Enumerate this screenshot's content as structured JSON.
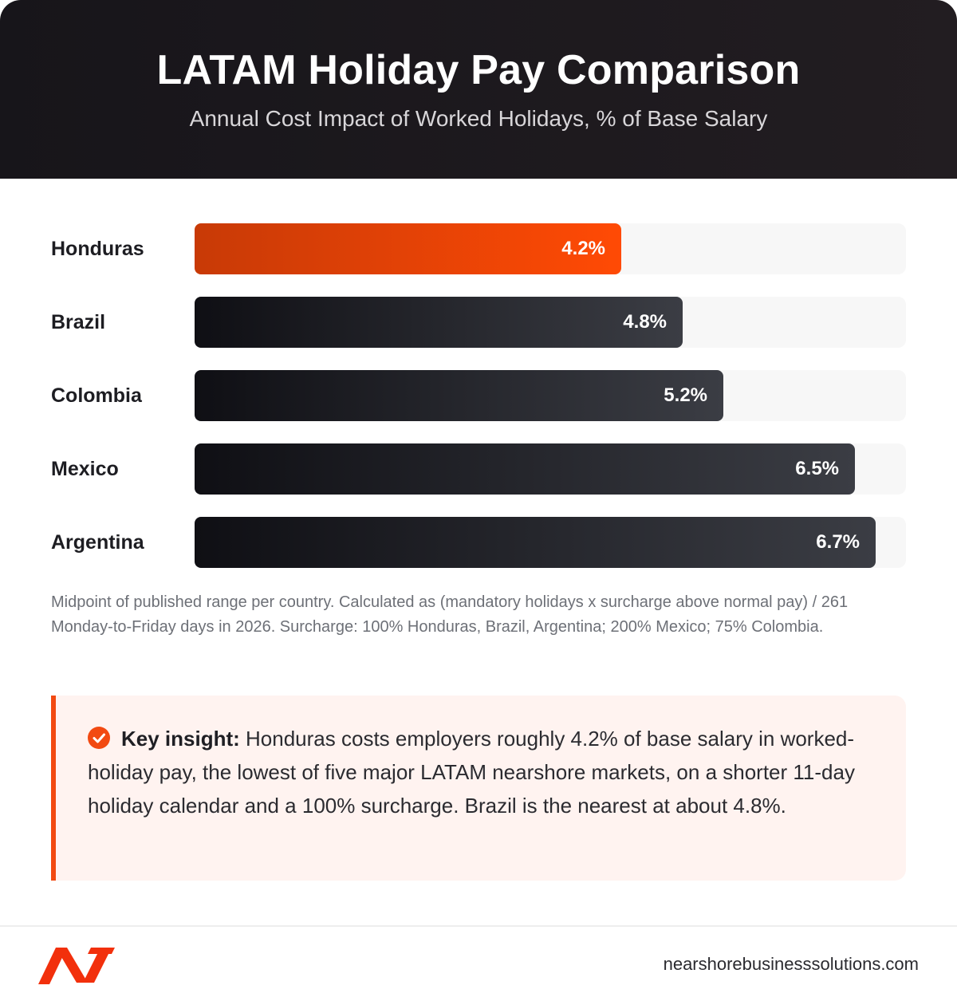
{
  "header": {
    "title": "LATAM Holiday Pay Comparison",
    "subtitle": "Annual Cost Impact of Worked Holidays, % of Base Salary"
  },
  "chart_data": {
    "type": "bar",
    "orientation": "horizontal",
    "title": "LATAM Holiday Pay Comparison",
    "subtitle": "Annual Cost Impact of Worked Holidays, % of Base Salary",
    "categories": [
      "Honduras",
      "Brazil",
      "Colombia",
      "Mexico",
      "Argentina"
    ],
    "values": [
      4.2,
      4.8,
      5.2,
      6.5,
      6.7
    ],
    "value_labels": [
      "4.2%",
      "4.8%",
      "5.2%",
      "6.5%",
      "6.7%"
    ],
    "highlight": "Honduras",
    "xlim": [
      0,
      7
    ],
    "grid": false,
    "colors": {
      "highlight": "#ff4a05",
      "default": "#1c1c22",
      "track": "#f7f7f7"
    }
  },
  "note": "Midpoint of published range per country. Calculated as (mandatory holidays x surcharge above normal pay) / 261 Monday-to-Friday days in 2026. Surcharge: 100% Honduras, Brazil, Argentina; 200% Mexico; 75% Colombia.",
  "insight": {
    "icon": "check-circle-icon",
    "label": "Key insight:",
    "text": " Honduras costs employers roughly 4.2% of base salary in worked-holiday pay, the lowest of five major LATAM nearshore markets, on a shorter 11-day holiday calendar and a 100% surcharge. Brazil is the nearest at about 4.8%."
  },
  "footer": {
    "logo": "brand-logo-icon",
    "website": "nearshorebusinesssolutions.com"
  },
  "colors": {
    "accent": "#f24a12",
    "header_bg": "#1b181c"
  }
}
